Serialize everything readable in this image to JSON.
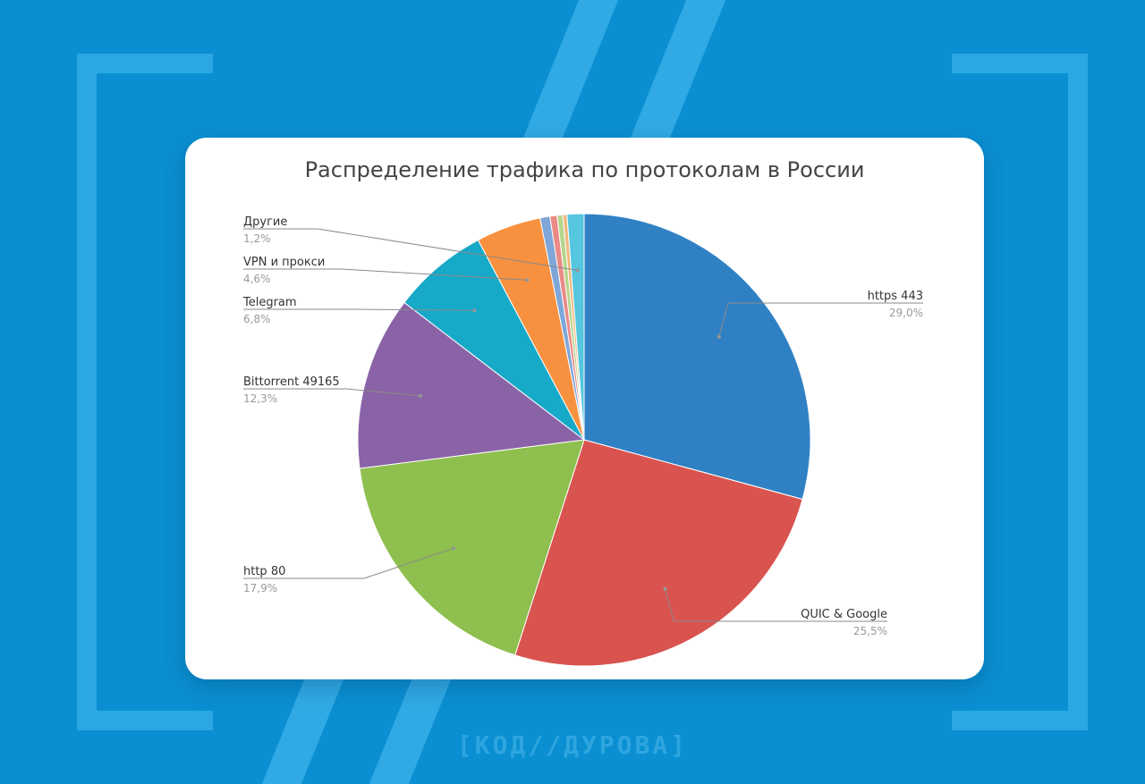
{
  "page": {
    "background": "#0a8fd2",
    "brand_text": "[КОД//ДУРОВА]"
  },
  "chart_data": {
    "type": "pie",
    "title": "Распределение трафика по протоколам в России",
    "slices": [
      {
        "name": "https 443",
        "value": 29.0,
        "label_value": "29,0%",
        "color": "#2f81c4"
      },
      {
        "name": "QUIC & Google",
        "value": 25.5,
        "label_value": "25,5%",
        "color": "#d9534f"
      },
      {
        "name": "http 80",
        "value": 17.9,
        "label_value": "17,9%",
        "color": "#8fbf4f"
      },
      {
        "name": "Bittorrent 49165",
        "value": 12.3,
        "label_value": "12,3%",
        "color": "#8a63a7"
      },
      {
        "name": "Telegram",
        "value": 6.8,
        "label_value": "6,8%",
        "color": "#17a9c8"
      },
      {
        "name": "VPN и прокси",
        "value": 4.6,
        "label_value": "4,6%",
        "color": "#f8913f"
      },
      {
        "name": "",
        "value": 0.7,
        "color": "#7ea6d8"
      },
      {
        "name": "",
        "value": 0.5,
        "color": "#e98a86"
      },
      {
        "name": "",
        "value": 0.4,
        "color": "#b7d58c"
      },
      {
        "name": "",
        "value": 0.3,
        "color": "#f0b77c"
      },
      {
        "name": "Другие",
        "value": 1.2,
        "label_value": "1,2%",
        "color": "#55c6de"
      }
    ]
  }
}
